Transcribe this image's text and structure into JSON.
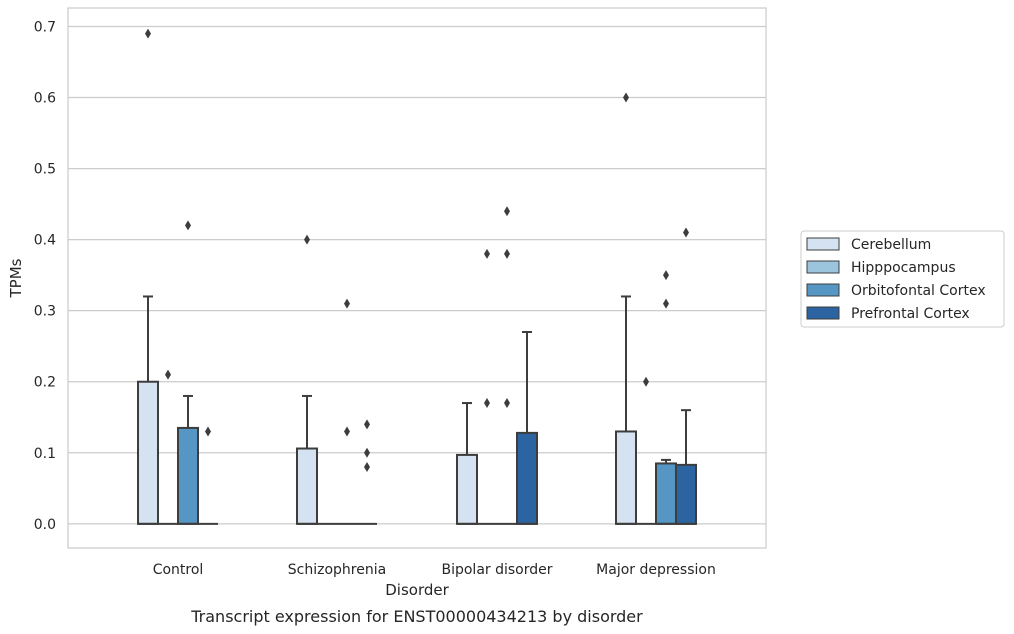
{
  "chart_data": {
    "type": "box",
    "caption": "Transcript expression for ENST00000434213 by disorder",
    "xlabel": "Disorder",
    "ylabel": "TPMs",
    "ylim": [
      -0.034,
      0.726
    ],
    "yticks": [
      0.0,
      0.1,
      0.2,
      0.3,
      0.4,
      0.5,
      0.6,
      0.7
    ],
    "ytick_labels": [
      "0.0",
      "0.1",
      "0.2",
      "0.3",
      "0.4",
      "0.5",
      "0.6",
      "0.7"
    ],
    "grid": true,
    "legend_position": "right",
    "categories": [
      "Control",
      "Schizophrenia",
      "Bipolar disorder",
      "Major depression"
    ],
    "series": [
      {
        "name": "Cerebellum",
        "color": "#d4e2f1",
        "boxes": [
          {
            "q1": 0,
            "median": 0,
            "q3": 0.2,
            "whisker_low": 0,
            "whisker_high": 0.32,
            "outliers": [
              0.69
            ]
          },
          {
            "q1": 0,
            "median": 0,
            "q3": 0.106,
            "whisker_low": 0,
            "whisker_high": 0.18,
            "outliers": [
              0.4
            ]
          },
          {
            "q1": 0,
            "median": 0,
            "q3": 0.097,
            "whisker_low": 0,
            "whisker_high": 0.17,
            "outliers": []
          },
          {
            "q1": 0,
            "median": 0,
            "q3": 0.13,
            "whisker_low": 0,
            "whisker_high": 0.32,
            "outliers": [
              0.6
            ]
          }
        ]
      },
      {
        "name": "Hipppocampus",
        "color": "#9bc4dd",
        "boxes": [
          {
            "q1": 0,
            "median": 0,
            "q3": 0,
            "whisker_low": 0,
            "whisker_high": 0,
            "outliers": [
              0.21
            ]
          },
          {
            "q1": 0,
            "median": 0,
            "q3": 0,
            "whisker_low": 0,
            "whisker_high": 0,
            "outliers": []
          },
          {
            "q1": 0,
            "median": 0,
            "q3": 0,
            "whisker_low": 0,
            "whisker_high": 0,
            "outliers": [
              0.38,
              0.17
            ]
          },
          {
            "q1": 0,
            "median": 0,
            "q3": 0,
            "whisker_low": 0,
            "whisker_high": 0,
            "outliers": [
              0.2
            ]
          }
        ]
      },
      {
        "name": "Orbitofontal Cortex",
        "color": "#5596c4",
        "boxes": [
          {
            "q1": 0,
            "median": 0,
            "q3": 0.135,
            "whisker_low": 0,
            "whisker_high": 0.18,
            "outliers": [
              0.42
            ]
          },
          {
            "q1": 0,
            "median": 0,
            "q3": 0,
            "whisker_low": 0,
            "whisker_high": 0,
            "outliers": [
              0.31,
              0.13
            ]
          },
          {
            "q1": 0,
            "median": 0,
            "q3": 0,
            "whisker_low": 0,
            "whisker_high": 0,
            "outliers": [
              0.44,
              0.38,
              0.17
            ]
          },
          {
            "q1": 0,
            "median": 0,
            "q3": 0.085,
            "whisker_low": 0,
            "whisker_high": 0.09,
            "outliers": [
              0.35,
              0.31
            ]
          }
        ]
      },
      {
        "name": "Prefrontal Cortex",
        "color": "#2b64a0",
        "boxes": [
          {
            "q1": 0,
            "median": 0,
            "q3": 0,
            "whisker_low": 0,
            "whisker_high": 0,
            "outliers": [
              0.13
            ]
          },
          {
            "q1": 0,
            "median": 0,
            "q3": 0,
            "whisker_low": 0,
            "whisker_high": 0,
            "outliers": [
              0.14,
              0.1,
              0.08
            ]
          },
          {
            "q1": 0,
            "median": 0,
            "q3": 0.128,
            "whisker_low": 0,
            "whisker_high": 0.27,
            "outliers": []
          },
          {
            "q1": 0,
            "median": 0,
            "q3": 0.083,
            "whisker_low": 0,
            "whisker_high": 0.16,
            "outliers": [
              0.41
            ]
          }
        ]
      }
    ]
  }
}
